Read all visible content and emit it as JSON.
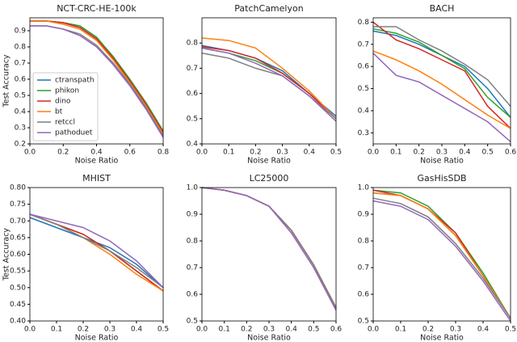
{
  "chart_data": [
    {
      "type": "line",
      "title": "NCT-CRC-HE-100k",
      "x_label": "Noise Ratio",
      "y_label": "Test Accuracy",
      "x": [
        0,
        0.1,
        0.2,
        0.3,
        0.4,
        0.5,
        0.6,
        0.7,
        0.8
      ],
      "xlim": [
        0,
        0.8
      ],
      "xticks": [
        {
          "value": 0,
          "label": "0.0"
        },
        0.2,
        0.4,
        0.6,
        0.8
      ],
      "ylim": [
        0.2,
        0.98
      ],
      "yticks": [
        0.2,
        0.3,
        0.4,
        0.5,
        0.6,
        0.7,
        0.8,
        0.9
      ],
      "legend": "lower left",
      "series": [
        {
          "name": "ctranspath",
          "color": "#1f77b4",
          "values": [
            0.96,
            0.96,
            0.95,
            0.92,
            0.85,
            0.72,
            0.58,
            0.43,
            0.26
          ]
        },
        {
          "name": "phikon",
          "color": "#2ca02c",
          "values": [
            0.96,
            0.96,
            0.95,
            0.93,
            0.86,
            0.74,
            0.6,
            0.45,
            0.28
          ]
        },
        {
          "name": "dino",
          "color": "#d62728",
          "values": [
            0.96,
            0.96,
            0.95,
            0.92,
            0.85,
            0.73,
            0.59,
            0.44,
            0.27
          ]
        },
        {
          "name": "bt",
          "color": "#ff7f0e",
          "values": [
            0.96,
            0.96,
            0.94,
            0.91,
            0.84,
            0.72,
            0.58,
            0.43,
            0.26
          ]
        },
        {
          "name": "retccl",
          "color": "#7f7f7f",
          "values": [
            0.93,
            0.93,
            0.91,
            0.88,
            0.81,
            0.7,
            0.57,
            0.42,
            0.25
          ]
        },
        {
          "name": "pathoduet",
          "color": "#9467bd",
          "values": [
            0.93,
            0.93,
            0.91,
            0.87,
            0.8,
            0.69,
            0.56,
            0.41,
            0.24
          ]
        }
      ]
    },
    {
      "type": "line",
      "title": "PatchCamelyon",
      "x_label": "Noise Ratio",
      "x": [
        0,
        0.1,
        0.2,
        0.3,
        0.4,
        0.5
      ],
      "xlim": [
        0,
        0.5
      ],
      "xticks": [
        {
          "value": 0,
          "label": "0.0"
        },
        0.1,
        0.2,
        0.3,
        0.4,
        0.5
      ],
      "ylim": [
        0.4,
        0.9
      ],
      "yticks": [
        0.4,
        0.5,
        0.6,
        0.7,
        0.8
      ],
      "series": [
        {
          "color": "#1f77b4",
          "values": [
            0.79,
            0.77,
            0.74,
            0.69,
            0.6,
            0.51
          ]
        },
        {
          "color": "#2ca02c",
          "values": [
            0.78,
            0.76,
            0.73,
            0.68,
            0.6,
            0.5
          ]
        },
        {
          "color": "#d62728",
          "values": [
            0.785,
            0.77,
            0.74,
            0.68,
            0.6,
            0.5
          ]
        },
        {
          "color": "#ff7f0e",
          "values": [
            0.82,
            0.81,
            0.78,
            0.7,
            0.61,
            0.5
          ]
        },
        {
          "color": "#7f7f7f",
          "values": [
            0.76,
            0.74,
            0.7,
            0.67,
            0.59,
            0.49
          ]
        },
        {
          "color": "#9467bd",
          "values": [
            0.78,
            0.76,
            0.72,
            0.67,
            0.59,
            0.5
          ]
        }
      ]
    },
    {
      "type": "line",
      "title": "BACH",
      "x_label": "Noise Ratio",
      "x": [
        0,
        0.1,
        0.2,
        0.3,
        0.4,
        0.5,
        0.6
      ],
      "xlim": [
        0,
        0.6
      ],
      "xticks": [
        {
          "value": 0,
          "label": "0.0"
        },
        0.1,
        0.2,
        0.3,
        0.4,
        0.5,
        0.6
      ],
      "ylim": [
        0.25,
        0.82
      ],
      "yticks": [
        0.3,
        0.4,
        0.5,
        0.6,
        0.7,
        0.8
      ],
      "series": [
        {
          "color": "#1f77b4",
          "values": [
            0.76,
            0.74,
            0.7,
            0.65,
            0.6,
            0.5,
            0.37
          ]
        },
        {
          "color": "#2ca02c",
          "values": [
            0.77,
            0.75,
            0.71,
            0.65,
            0.59,
            0.46,
            0.37
          ]
        },
        {
          "color": "#d62728",
          "values": [
            0.8,
            0.72,
            0.68,
            0.63,
            0.58,
            0.42,
            0.32
          ]
        },
        {
          "color": "#ff7f0e",
          "values": [
            0.67,
            0.63,
            0.58,
            0.52,
            0.45,
            0.38,
            0.32
          ]
        },
        {
          "color": "#7f7f7f",
          "values": [
            0.78,
            0.78,
            0.72,
            0.67,
            0.61,
            0.54,
            0.42
          ]
        },
        {
          "color": "#9467bd",
          "values": [
            0.66,
            0.56,
            0.53,
            0.47,
            0.41,
            0.35,
            0.26
          ]
        }
      ]
    },
    {
      "type": "line",
      "title": "MHIST",
      "x_label": "Noise Ratio",
      "y_label": "Test Accuracy",
      "x": [
        0,
        0.1,
        0.2,
        0.3,
        0.4,
        0.5
      ],
      "xlim": [
        0,
        0.5
      ],
      "xticks": [
        {
          "value": 0,
          "label": "0.0"
        },
        0.1,
        0.2,
        0.3,
        0.4,
        0.5
      ],
      "ylim": [
        0.4,
        0.8
      ],
      "yticks": [
        {
          "value": 0.4,
          "label": "0.40"
        },
        0.45,
        {
          "value": 0.5,
          "label": "0.50"
        },
        0.55,
        {
          "value": 0.6,
          "label": "0.60"
        },
        0.65,
        {
          "value": 0.7,
          "label": "0.70"
        },
        0.75,
        {
          "value": 0.8,
          "label": "0.80"
        }
      ],
      "series": [
        {
          "color": "#1f77b4",
          "values": [
            0.71,
            0.68,
            0.65,
            0.62,
            0.57,
            0.5
          ]
        },
        {
          "color": "#2ca02c",
          "values": [
            0.72,
            0.69,
            0.66,
            0.61,
            0.55,
            0.49
          ]
        },
        {
          "color": "#d62728",
          "values": [
            0.72,
            0.69,
            0.66,
            0.61,
            0.55,
            0.49
          ]
        },
        {
          "color": "#ff7f0e",
          "values": [
            0.72,
            0.69,
            0.65,
            0.6,
            0.54,
            0.49
          ]
        },
        {
          "color": "#7f7f7f",
          "values": [
            0.72,
            0.69,
            0.65,
            0.61,
            0.56,
            0.5
          ]
        },
        {
          "color": "#9467bd",
          "values": [
            0.72,
            0.7,
            0.68,
            0.64,
            0.58,
            0.5
          ]
        }
      ]
    },
    {
      "type": "line",
      "title": "LC25000",
      "x_label": "Noise Ratio",
      "x": [
        0,
        0.1,
        0.2,
        0.3,
        0.4,
        0.5,
        0.6
      ],
      "xlim": [
        0,
        0.6
      ],
      "xticks": [
        {
          "value": 0,
          "label": "0.0"
        },
        0.1,
        0.2,
        0.3,
        0.4,
        0.5,
        0.6
      ],
      "ylim": [
        0.5,
        1
      ],
      "yticks": [
        0.5,
        0.6,
        0.7,
        0.8,
        0.9,
        {
          "value": 1,
          "label": "1.0"
        }
      ],
      "series": [
        {
          "color": "#1f77b4",
          "values": [
            1,
            0.99,
            0.97,
            0.93,
            0.84,
            0.71,
            0.55
          ]
        },
        {
          "color": "#2ca02c",
          "values": [
            1,
            0.99,
            0.97,
            0.93,
            0.84,
            0.71,
            0.55
          ]
        },
        {
          "color": "#d62728",
          "values": [
            1,
            0.99,
            0.97,
            0.93,
            0.84,
            0.71,
            0.55
          ]
        },
        {
          "color": "#ff7f0e",
          "values": [
            1,
            0.99,
            0.97,
            0.93,
            0.84,
            0.71,
            0.55
          ]
        },
        {
          "color": "#7f7f7f",
          "values": [
            1,
            0.99,
            0.97,
            0.93,
            0.84,
            0.71,
            0.55
          ]
        },
        {
          "color": "#9467bd",
          "values": [
            1,
            0.99,
            0.97,
            0.93,
            0.83,
            0.7,
            0.54
          ]
        }
      ]
    },
    {
      "type": "line",
      "title": "GasHisSDB",
      "x_label": "Noise Ratio",
      "x": [
        0,
        0.1,
        0.2,
        0.3,
        0.4,
        0.5
      ],
      "xlim": [
        0,
        0.5
      ],
      "xticks": [
        {
          "value": 0,
          "label": "0.0"
        },
        0.1,
        0.2,
        0.3,
        0.4,
        0.5
      ],
      "ylim": [
        0.5,
        1
      ],
      "yticks": [
        0.5,
        0.6,
        0.7,
        0.8,
        0.9,
        {
          "value": 1,
          "label": "1.0"
        }
      ],
      "series": [
        {
          "color": "#1f77b4",
          "values": [
            0.98,
            0.97,
            0.92,
            0.82,
            0.67,
            0.51
          ]
        },
        {
          "color": "#2ca02c",
          "values": [
            0.99,
            0.98,
            0.93,
            0.83,
            0.68,
            0.51
          ]
        },
        {
          "color": "#d62728",
          "values": [
            0.99,
            0.97,
            0.92,
            0.83,
            0.67,
            0.51
          ]
        },
        {
          "color": "#ff7f0e",
          "values": [
            0.98,
            0.97,
            0.92,
            0.82,
            0.67,
            0.51
          ]
        },
        {
          "color": "#7f7f7f",
          "values": [
            0.96,
            0.94,
            0.89,
            0.79,
            0.66,
            0.51
          ]
        },
        {
          "color": "#9467bd",
          "values": [
            0.95,
            0.93,
            0.88,
            0.78,
            0.65,
            0.5
          ]
        }
      ]
    }
  ]
}
